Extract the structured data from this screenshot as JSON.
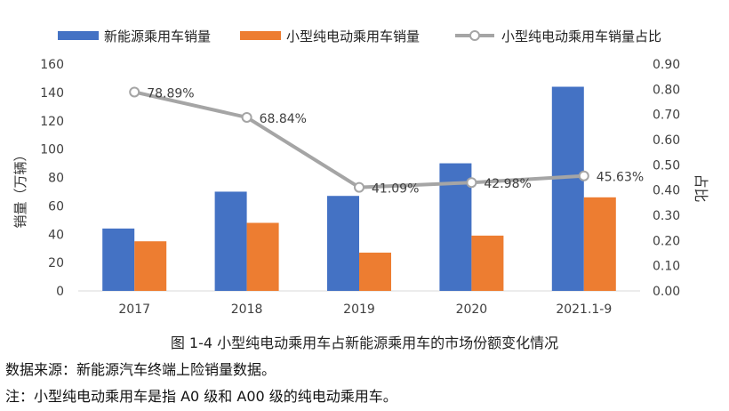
{
  "chart_data": {
    "type": "bar",
    "categories": [
      "2017",
      "2018",
      "2019",
      "2020",
      "2021.1-9"
    ],
    "series": [
      {
        "name": "新能源乘用车销量",
        "kind": "bar",
        "axis": "left",
        "color": "#4472C4",
        "values": [
          44,
          70,
          67,
          90,
          144
        ]
      },
      {
        "name": "小型纯电动乘用车销量",
        "kind": "bar",
        "axis": "left",
        "color": "#ED7D31",
        "values": [
          35,
          48,
          27,
          39,
          66
        ]
      },
      {
        "name": "小型纯电动乘用车销量占比",
        "kind": "line",
        "axis": "right",
        "color": "#A5A5A5",
        "values": [
          0.7889,
          0.6884,
          0.4109,
          0.4298,
          0.4563
        ],
        "labels": [
          "78.89%",
          "68.84%",
          "41.09%",
          "42.98%",
          "45.63%"
        ]
      }
    ],
    "y_left": {
      "label": "销量（万辆）",
      "lim": [
        0,
        160
      ],
      "ticks": [
        "0",
        "20",
        "40",
        "60",
        "80",
        "100",
        "120",
        "140",
        "160"
      ]
    },
    "y_right": {
      "label": "占比",
      "lim": [
        0,
        0.9
      ],
      "ticks": [
        "0.00",
        "0.10",
        "0.20",
        "0.30",
        "0.40",
        "0.50",
        "0.60",
        "0.70",
        "0.80",
        "0.90"
      ]
    },
    "legend_position": "top",
    "grid": false
  },
  "caption": "图 1-4  小型纯电动乘用车占新能源乘用车的市场份额变化情况",
  "source_note": "数据来源：新能源汽车终端上险销量数据。",
  "remark_note": "注：小型纯电动乘用车是指 A0 级和 A00 级的纯电动乘用车。"
}
